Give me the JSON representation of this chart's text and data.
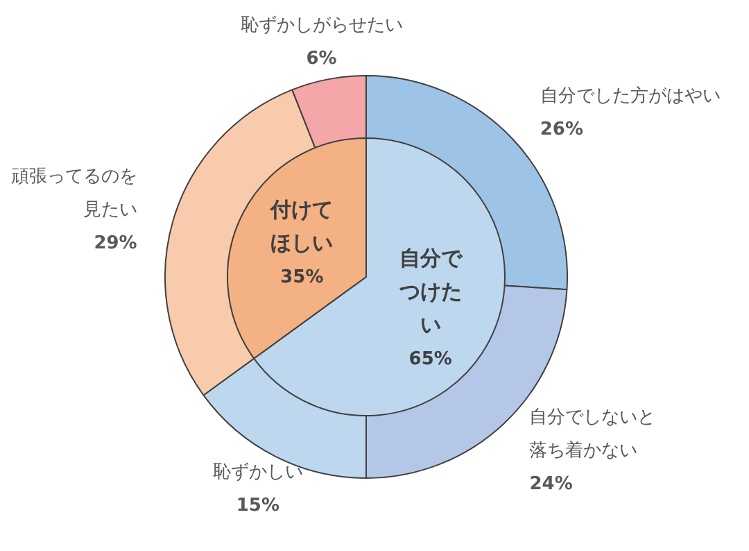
{
  "chart_data": [
    {
      "type": "donut",
      "categories": [
        "自分でした方がはやい",
        "自分でしないと落ち着かない",
        "恥ずかしい",
        "頑張ってるのを見たい",
        "恥ずかしがらせたい"
      ],
      "values": [
        26,
        24,
        15,
        29,
        6
      ],
      "colors": [
        "#9dc3e6",
        "#b4c7e7",
        "#bdd7ee",
        "#f8cbad",
        "#f4a6a8"
      ],
      "value_labels": [
        "26%",
        "24%",
        "15%",
        "29%",
        "6%"
      ]
    },
    {
      "type": "pie",
      "categories": [
        "自分でつけたい",
        "付けてほしい"
      ],
      "values": [
        65,
        35
      ],
      "colors": [
        "#bdd7ee",
        "#f4b183"
      ],
      "value_labels": [
        "65%",
        "35%"
      ]
    }
  ]
}
